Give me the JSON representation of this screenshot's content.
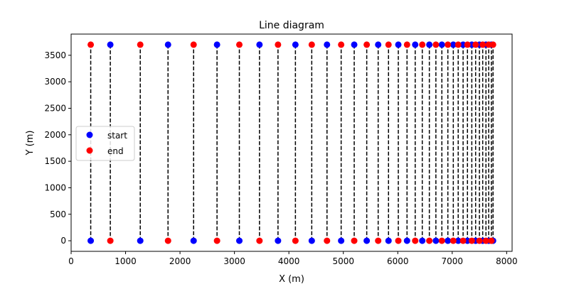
{
  "chart_data": {
    "type": "scatter",
    "title": "Line diagram",
    "xlabel": "X (m)",
    "ylabel": "Y (m)",
    "xlim": [
      0,
      8100
    ],
    "ylim": [
      -200,
      3900
    ],
    "xticks": [
      0,
      1000,
      2000,
      3000,
      4000,
      5000,
      6000,
      7000,
      8000
    ],
    "yticks": [
      0,
      500,
      1000,
      1500,
      2000,
      2500,
      3000,
      3500
    ],
    "grid": false,
    "legend_position": "center-left",
    "colors": {
      "start": "#0000ff",
      "end": "#ff0000",
      "line": "#000000"
    },
    "legend": [
      "start",
      "end"
    ],
    "lines": [
      {
        "x": 360,
        "start_y": 0,
        "end_y": 3700
      },
      {
        "x": 720,
        "start_y": 3700,
        "end_y": 0
      },
      {
        "x": 1270,
        "start_y": 0,
        "end_y": 3700
      },
      {
        "x": 1780,
        "start_y": 3700,
        "end_y": 0
      },
      {
        "x": 2250,
        "start_y": 0,
        "end_y": 3700
      },
      {
        "x": 2680,
        "start_y": 3700,
        "end_y": 0
      },
      {
        "x": 3090,
        "start_y": 0,
        "end_y": 3700
      },
      {
        "x": 3460,
        "start_y": 3700,
        "end_y": 0
      },
      {
        "x": 3800,
        "start_y": 0,
        "end_y": 3700
      },
      {
        "x": 4120,
        "start_y": 3700,
        "end_y": 0
      },
      {
        "x": 4420,
        "start_y": 0,
        "end_y": 3700
      },
      {
        "x": 4700,
        "start_y": 3700,
        "end_y": 0
      },
      {
        "x": 4960,
        "start_y": 0,
        "end_y": 3700
      },
      {
        "x": 5200,
        "start_y": 3700,
        "end_y": 0
      },
      {
        "x": 5430,
        "start_y": 0,
        "end_y": 3700
      },
      {
        "x": 5640,
        "start_y": 3700,
        "end_y": 0
      },
      {
        "x": 5830,
        "start_y": 0,
        "end_y": 3700
      },
      {
        "x": 6010,
        "start_y": 3700,
        "end_y": 0
      },
      {
        "x": 6170,
        "start_y": 0,
        "end_y": 3700
      },
      {
        "x": 6320,
        "start_y": 3700,
        "end_y": 0
      },
      {
        "x": 6450,
        "start_y": 0,
        "end_y": 3700
      },
      {
        "x": 6580,
        "start_y": 3700,
        "end_y": 0
      },
      {
        "x": 6700,
        "start_y": 0,
        "end_y": 3700
      },
      {
        "x": 6810,
        "start_y": 3700,
        "end_y": 0
      },
      {
        "x": 6920,
        "start_y": 0,
        "end_y": 3700
      },
      {
        "x": 7020,
        "start_y": 3700,
        "end_y": 0
      },
      {
        "x": 7110,
        "start_y": 0,
        "end_y": 3700
      },
      {
        "x": 7200,
        "start_y": 3700,
        "end_y": 0
      },
      {
        "x": 7280,
        "start_y": 0,
        "end_y": 3700
      },
      {
        "x": 7360,
        "start_y": 3700,
        "end_y": 0
      },
      {
        "x": 7430,
        "start_y": 0,
        "end_y": 3700
      },
      {
        "x": 7500,
        "start_y": 3700,
        "end_y": 0
      },
      {
        "x": 7560,
        "start_y": 0,
        "end_y": 3700
      },
      {
        "x": 7620,
        "start_y": 3700,
        "end_y": 0
      },
      {
        "x": 7670,
        "start_y": 0,
        "end_y": 3700
      },
      {
        "x": 7720,
        "start_y": 3700,
        "end_y": 0
      },
      {
        "x": 7750,
        "start_y": 0,
        "end_y": 3700
      }
    ]
  }
}
